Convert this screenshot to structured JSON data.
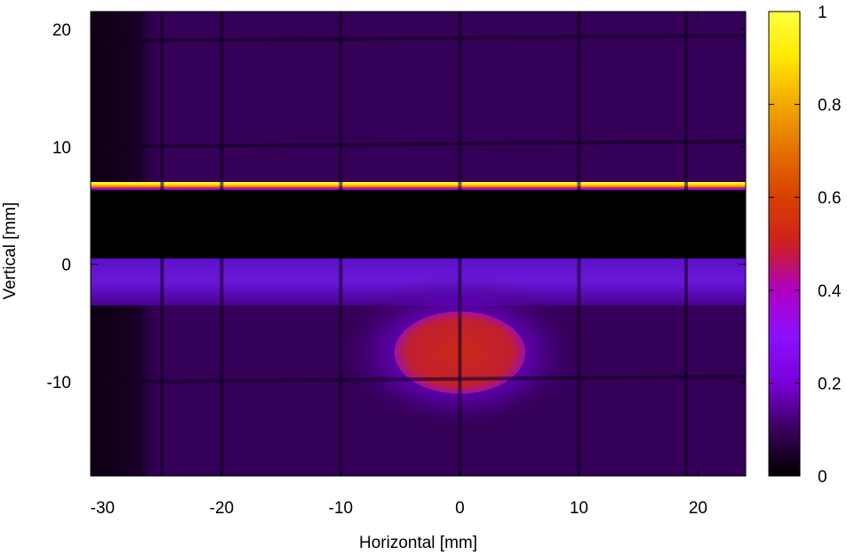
{
  "chart_data": {
    "type": "heatmap",
    "title": "",
    "xlabel": "Horizontal [mm]",
    "ylabel": "Vertical [mm]",
    "xlim": [
      -31,
      24
    ],
    "ylim": [
      -18,
      21.5
    ],
    "x_ticks": [
      -30,
      -20,
      -10,
      0,
      10,
      20
    ],
    "y_ticks": [
      -10,
      0,
      10,
      20
    ],
    "colorbar": {
      "range": [
        0,
        1
      ],
      "ticks": [
        0,
        0.2,
        0.4,
        0.6,
        0.8,
        1
      ],
      "colormap": [
        "#000000",
        "#3a005c",
        "#7a00d8",
        "#8b10ff",
        "#b000c0",
        "#cc2020",
        "#d84000",
        "#e47000",
        "#f0a800",
        "#ffe800",
        "#ffff40"
      ]
    },
    "features": [
      {
        "name": "background",
        "x_range": [
          -31,
          24
        ],
        "y_range": [
          -18,
          21.5
        ],
        "value": 0.08
      },
      {
        "name": "dark-left-edge",
        "x_range": [
          -31,
          -25
        ],
        "y_range": [
          -18,
          21.5
        ],
        "value": 0.02
      },
      {
        "name": "bright-stripe",
        "x_range": [
          -31,
          24
        ],
        "y_range": [
          6.3,
          7.0
        ],
        "value": 1.0
      },
      {
        "name": "dark-band",
        "x_range": [
          -31,
          24
        ],
        "y_range": [
          0.5,
          6.3
        ],
        "value": 0.0
      },
      {
        "name": "glow-band",
        "x_range": [
          -31,
          24
        ],
        "y_range": [
          -3.5,
          0.5
        ],
        "value": 0.18
      },
      {
        "name": "hot-spot",
        "center": [
          0,
          -7.5
        ],
        "half_width": [
          5.5,
          3.5
        ],
        "value": 0.55
      },
      {
        "name": "grid-lines-x",
        "x": [
          -25,
          -20,
          -10,
          0,
          10,
          19
        ],
        "value": 0.0
      },
      {
        "name": "grid-lines-y",
        "y": [
          19,
          10,
          -10
        ],
        "value": 0.0
      }
    ]
  }
}
